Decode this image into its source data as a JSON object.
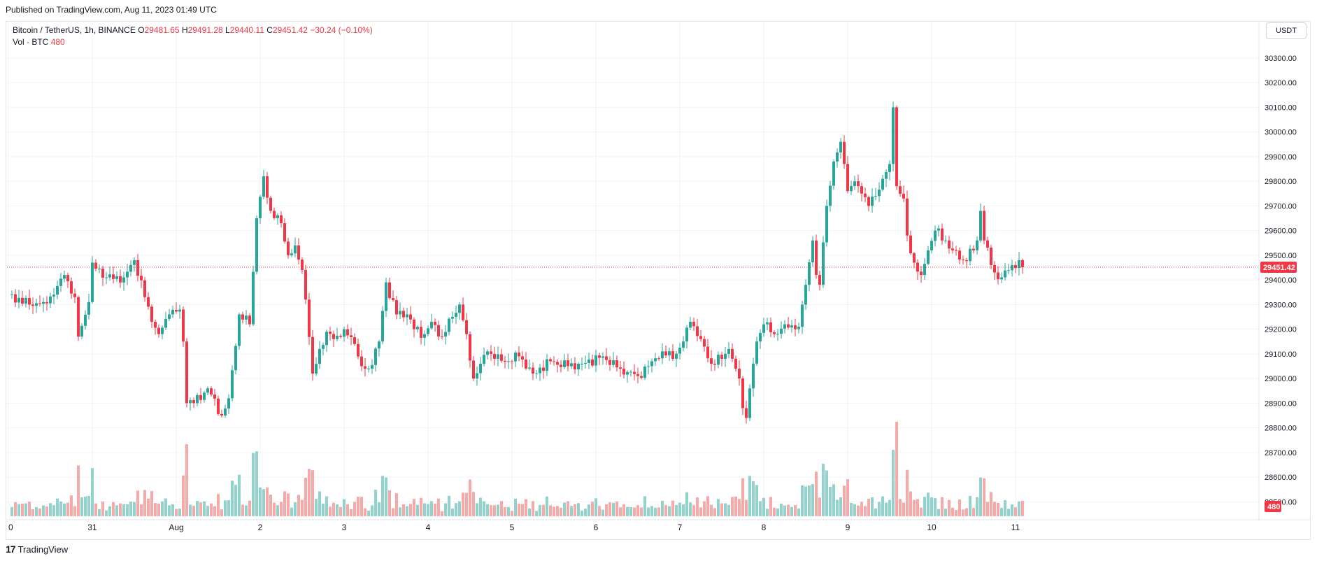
{
  "header": {
    "published": "Published on TradingView.com, Aug 11, 2023 01:49 UTC"
  },
  "legend": {
    "symbol": "Bitcoin / TetherUS, 1h, BINANCE",
    "open_label": "O",
    "open": "29481.65",
    "high_label": "H",
    "high": "29491.28",
    "low_label": "L",
    "low": "29440.11",
    "close_label": "C",
    "close": "29451.42",
    "change": "−30.24 (−0.10%)",
    "vol_label": "Vol · BTC",
    "vol_value": "480"
  },
  "currency_button": "USDT",
  "footer": {
    "logo": "17",
    "brand": "TradingView"
  },
  "colors": {
    "up": "#26a69a",
    "down": "#f23645",
    "vol_up": "#92d2cc",
    "vol_down": "#f7a9a7",
    "price_line": "#f23645"
  },
  "chart_data": {
    "type": "candlestick",
    "timeframe": "1h",
    "y_ticks": [
      "30300.00",
      "30200.00",
      "30100.00",
      "30000.00",
      "29900.00",
      "29800.00",
      "29700.00",
      "29600.00",
      "29500.00",
      "29400.00",
      "29300.00",
      "29200.00",
      "29100.00",
      "29000.00",
      "28900.00",
      "28800.00",
      "28700.00",
      "28600.00",
      "28500.00"
    ],
    "ylim": [
      28450,
      30350
    ],
    "last_price": "29451.42",
    "last_volume": "480",
    "x_ticks": [
      {
        "label": "0",
        "hour": 0
      },
      {
        "label": "31",
        "hour": 24
      },
      {
        "label": "Aug",
        "hour": 48
      },
      {
        "label": "2",
        "hour": 72
      },
      {
        "label": "3",
        "hour": 96
      },
      {
        "label": "4",
        "hour": 120
      },
      {
        "label": "5",
        "hour": 144
      },
      {
        "label": "6",
        "hour": 168
      },
      {
        "label": "7",
        "hour": 192
      },
      {
        "label": "8",
        "hour": 216
      },
      {
        "label": "9",
        "hour": 240
      },
      {
        "label": "10",
        "hour": 264
      },
      {
        "label": "11",
        "hour": 288
      }
    ],
    "anchors": [
      [
        0,
        29340
      ],
      [
        6,
        29300
      ],
      [
        10,
        29310
      ],
      [
        13,
        29340
      ],
      [
        16,
        29420
      ],
      [
        19,
        29330
      ],
      [
        20,
        29170
      ],
      [
        23,
        29310
      ],
      [
        24,
        29470
      ],
      [
        28,
        29410
      ],
      [
        33,
        29410
      ],
      [
        36,
        29480
      ],
      [
        39,
        29330
      ],
      [
        41,
        29230
      ],
      [
        43,
        29180
      ],
      [
        46,
        29260
      ],
      [
        49,
        29280
      ],
      [
        50,
        29150
      ],
      [
        51,
        28900
      ],
      [
        53,
        28900
      ],
      [
        57,
        28960
      ],
      [
        61,
        28850
      ],
      [
        63,
        28920
      ],
      [
        66,
        29260
      ],
      [
        69,
        29220
      ],
      [
        71,
        29650
      ],
      [
        73,
        29820
      ],
      [
        75,
        29680
      ],
      [
        78,
        29630
      ],
      [
        80,
        29500
      ],
      [
        82,
        29540
      ],
      [
        84,
        29440
      ],
      [
        85,
        29320
      ],
      [
        87,
        29020
      ],
      [
        89,
        29120
      ],
      [
        91,
        29190
      ],
      [
        93,
        29160
      ],
      [
        96,
        29200
      ],
      [
        99,
        29140
      ],
      [
        101,
        29050
      ],
      [
        103,
        29040
      ],
      [
        106,
        29150
      ],
      [
        108,
        29390
      ],
      [
        111,
        29260
      ],
      [
        114,
        29260
      ],
      [
        116,
        29200
      ],
      [
        119,
        29180
      ],
      [
        121,
        29230
      ],
      [
        124,
        29170
      ],
      [
        127,
        29250
      ],
      [
        129,
        29300
      ],
      [
        131,
        29180
      ],
      [
        133,
        29000
      ],
      [
        135,
        29060
      ],
      [
        137,
        29110
      ],
      [
        139,
        29080
      ],
      [
        143,
        29070
      ],
      [
        146,
        29090
      ],
      [
        150,
        29020
      ],
      [
        155,
        29070
      ],
      [
        160,
        29050
      ],
      [
        164,
        29060
      ],
      [
        170,
        29090
      ],
      [
        175,
        29040
      ],
      [
        180,
        29010
      ],
      [
        184,
        29070
      ],
      [
        187,
        29110
      ],
      [
        190,
        29080
      ],
      [
        193,
        29150
      ],
      [
        195,
        29230
      ],
      [
        198,
        29160
      ],
      [
        201,
        29060
      ],
      [
        204,
        29080
      ],
      [
        206,
        29120
      ],
      [
        208,
        29040
      ],
      [
        209,
        29000
      ],
      [
        210,
        28880
      ],
      [
        211,
        28840
      ],
      [
        212,
        28960
      ],
      [
        214,
        29150
      ],
      [
        216,
        29220
      ],
      [
        219,
        29180
      ],
      [
        222,
        29220
      ],
      [
        225,
        29200
      ],
      [
        226,
        29210
      ],
      [
        228,
        29380
      ],
      [
        230,
        29560
      ],
      [
        231,
        29420
      ],
      [
        232,
        29380
      ],
      [
        234,
        29700
      ],
      [
        236,
        29880
      ],
      [
        238,
        29960
      ],
      [
        239,
        29870
      ],
      [
        240,
        29760
      ],
      [
        242,
        29800
      ],
      [
        244,
        29750
      ],
      [
        246,
        29700
      ],
      [
        248,
        29740
      ],
      [
        250,
        29810
      ],
      [
        252,
        29870
      ],
      [
        253,
        30100
      ],
      [
        254,
        29780
      ],
      [
        256,
        29730
      ],
      [
        257,
        29580
      ],
      [
        259,
        29470
      ],
      [
        261,
        29420
      ],
      [
        263,
        29520
      ],
      [
        265,
        29600
      ],
      [
        268,
        29560
      ],
      [
        270,
        29520
      ],
      [
        273,
        29480
      ],
      [
        276,
        29520
      ],
      [
        277,
        29560
      ],
      [
        278,
        29680
      ],
      [
        279,
        29560
      ],
      [
        281,
        29460
      ],
      [
        282,
        29430
      ],
      [
        284,
        29410
      ],
      [
        287,
        29460
      ],
      [
        289,
        29480
      ],
      [
        290,
        29451.42
      ]
    ],
    "total_hours": 290
  }
}
